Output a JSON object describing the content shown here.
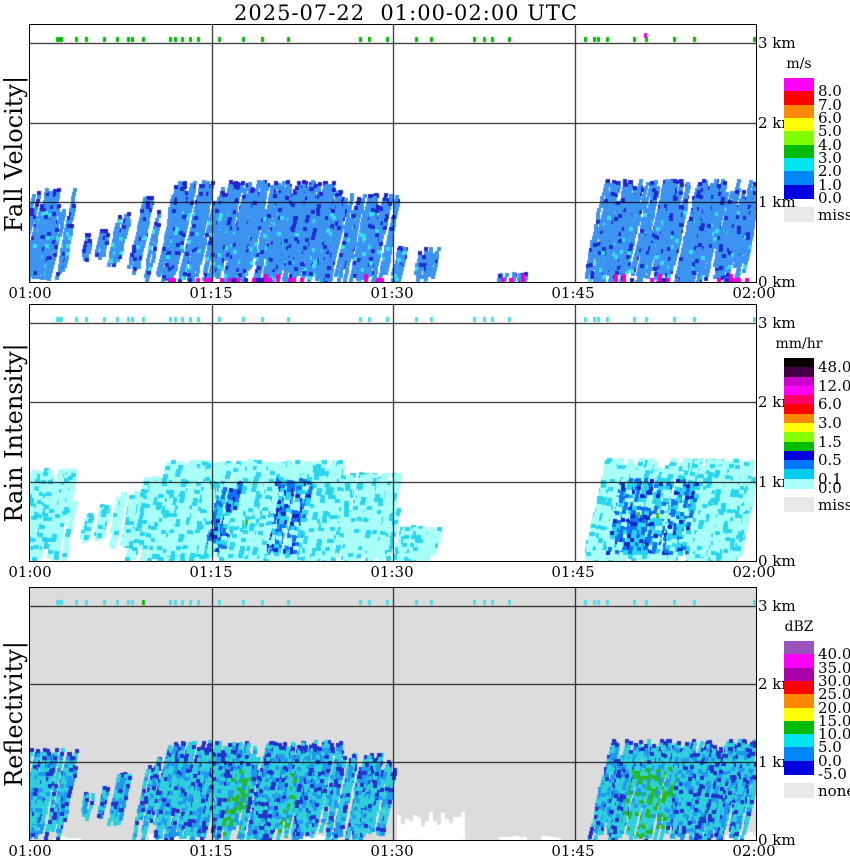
{
  "title": "2025-07-22  01:00-02:00 UTC",
  "chart_data": {
    "type": "heatmap",
    "title": "2025-07-22  01:00-02:00 UTC",
    "x_axis": {
      "start": "01:00",
      "end": "02:00",
      "tick_labels": [
        "01:00",
        "01:15",
        "01:30",
        "01:45",
        "02:00"
      ],
      "tick_minutes": [
        0,
        15,
        30,
        45,
        60
      ]
    },
    "y_axis": {
      "tick_labels": [
        "3 km",
        "2 km",
        "1 km",
        "0 km"
      ],
      "tick_km": [
        3,
        2,
        1,
        0
      ],
      "range_km": [
        0,
        3.2
      ]
    },
    "rain_flags_min": [
      2.2,
      3.8,
      4.6,
      6.1,
      7.2,
      8.1,
      8.45,
      9.35,
      11.6,
      11.95,
      12.55,
      13.2,
      13.9,
      15.6,
      17.6,
      19.2,
      21.3,
      27.3,
      28.0,
      29.5,
      31.9,
      33.1,
      36.7,
      37.5,
      38.2,
      39.6,
      45.9,
      46.6,
      46.95,
      47.7,
      49.9,
      50.9,
      53.2,
      54.9,
      59.8
    ],
    "echo_clusters": [
      {
        "name": "A",
        "t0": 0.0,
        "t1": 3.7,
        "top_km": 1.18,
        "bot_km": 0.02,
        "coverage": 0.62,
        "panels": [
          1,
          1,
          1
        ]
      },
      {
        "name": "B1",
        "t0": 4.4,
        "t1": 5.1,
        "top_km": 0.62,
        "bot_km": 0.28,
        "coverage": 0.5,
        "panels": [
          1,
          1,
          1
        ]
      },
      {
        "name": "B2",
        "t0": 5.7,
        "t1": 6.4,
        "top_km": 0.72,
        "bot_km": 0.3,
        "coverage": 0.5,
        "panels": [
          1,
          1,
          1
        ]
      },
      {
        "name": "B3",
        "t0": 7.1,
        "t1": 8.8,
        "top_km": 0.88,
        "bot_km": 0.2,
        "coverage": 0.55,
        "panels": [
          1,
          1,
          1
        ]
      },
      {
        "name": "C0",
        "t0": 9.3,
        "t1": 10.6,
        "top_km": 1.08,
        "bot_km": 0.0,
        "coverage": 0.6,
        "panels": [
          1,
          1,
          1
        ]
      },
      {
        "name": "C",
        "t0": 11.2,
        "t1": 25.7,
        "top_km": 1.28,
        "bot_km": 0.0,
        "coverage": 0.95,
        "panels": [
          1,
          1,
          1
        ]
      },
      {
        "name": "C-tail",
        "t0": 25.7,
        "t1": 30.3,
        "top_km": 1.12,
        "bot_km": 0.0,
        "coverage": 0.65,
        "panels": [
          1,
          1,
          1
        ]
      },
      {
        "name": "C-end",
        "t0": 30.3,
        "t1": 33.8,
        "top_km": 0.45,
        "bot_km": 0.0,
        "coverage": 0.5,
        "panels": [
          1,
          1,
          0
        ]
      },
      {
        "name": "low-bits-1",
        "t0": 38.5,
        "t1": 40.9,
        "top_km": 0.12,
        "bot_km": 0.0,
        "coverage": 0.4,
        "panels": [
          1,
          0,
          0
        ]
      },
      {
        "name": "low-bits-2",
        "t0": 45.8,
        "t1": 47.2,
        "top_km": 0.14,
        "bot_km": 0.0,
        "coverage": 0.4,
        "panels": [
          1,
          0,
          0
        ]
      },
      {
        "name": "D",
        "t0": 47.3,
        "t1": 59.9,
        "top_km": 1.3,
        "bot_km": 0.0,
        "coverage": 0.88,
        "panels": [
          1,
          1,
          1
        ]
      }
    ],
    "heavy_cores_min": [
      [
        15.4,
        17.7
      ],
      [
        20.4,
        23.3
      ],
      [
        48.8,
        55.3
      ]
    ],
    "green_cores_min": [
      [
        17.1,
        18.5
      ],
      [
        21.7,
        22.7
      ],
      [
        49.9,
        53.9
      ]
    ],
    "panels": [
      {
        "id": "fall-velocity",
        "ylabel": "Fall Velocity|",
        "units": "m/s",
        "bg": "#FFFFFF",
        "flag_color": "#00BB00",
        "extra_flags": [
          {
            "t": 50.85,
            "color": "#EE00DD",
            "y": 8
          }
        ],
        "echo_style": {
          "base": "#3D93F0",
          "cap": "#2222CC",
          "speck_dark": "#1A2FD0",
          "speck_cyan": "#38E0E8"
        },
        "surface_magenta": {
          "color": "#EE00D0",
          "ranges_min": [
            [
              11.4,
              22.4
            ],
            [
              27.6,
              29.0
            ],
            [
              38.6,
              40.7
            ],
            [
              48.3,
              50.0
            ],
            [
              51.2,
              52.6
            ],
            [
              56.8,
              59.6
            ]
          ]
        },
        "colorbar": {
          "title": "m/s",
          "bands": [
            {
              "color": "#FF00FF",
              "label": "8.0"
            },
            {
              "color": "#FF0000",
              "label": "7.0"
            },
            {
              "color": "#FF8800",
              "label": "6.0"
            },
            {
              "color": "#FFFF00",
              "label": "5.0"
            },
            {
              "color": "#7FFF00",
              "label": "4.0"
            },
            {
              "color": "#00BB00",
              "label": "3.0"
            },
            {
              "color": "#00E4F0",
              "label": "2.0"
            },
            {
              "color": "#0086FF",
              "label": "1.0"
            },
            {
              "color": "#0000E0",
              "label": "0.0"
            }
          ],
          "missing": {
            "color": "#E8E8E8",
            "label": "miss"
          }
        }
      },
      {
        "id": "rain-intensity",
        "ylabel": "Rain Intensity|",
        "units": "mm/hr",
        "bg": "#FFFFFF",
        "flag_color": "#4CDDE8",
        "green_dots": [
          [
            17.9,
            0.52
          ],
          [
            50.3,
            0.62
          ],
          [
            51.9,
            0.6
          ]
        ],
        "echo_style": {
          "outer": "#A8FFF8",
          "mid": "#2BD4EE",
          "strong": "#1173F0",
          "core": "#1028C8"
        },
        "colorbar": {
          "title": "mm/hr",
          "bands": [
            {
              "color": "#000000",
              "label": "48.0"
            },
            {
              "color": "#440044"
            },
            {
              "color": "#CC00CC",
              "label": "12.0"
            },
            {
              "color": "#FF00FF"
            },
            {
              "color": "#FF0066",
              "label": "6.0"
            },
            {
              "color": "#FF0000"
            },
            {
              "color": "#FF8800",
              "label": "3.0"
            },
            {
              "color": "#FFFF00"
            },
            {
              "color": "#88FF00",
              "label": "1.5"
            },
            {
              "color": "#00BB00"
            },
            {
              "color": "#0000E0",
              "label": "0.5"
            },
            {
              "color": "#0077FF"
            },
            {
              "color": "#00CCEE",
              "label": "0.1"
            },
            {
              "color": "#AAFFFF",
              "label": "0.0"
            }
          ],
          "missing": {
            "color": "#E8E8E8",
            "label": "miss"
          }
        }
      },
      {
        "id": "reflectivity",
        "ylabel": "Reflectivity|",
        "units": "dBZ",
        "bg": "#DCDCDC",
        "flag_color": "#4CDDE8",
        "flag_overrides": [
          {
            "t": 9.35,
            "color": "#00BB00"
          }
        ],
        "white_patches": [
          [
            1.9,
            4.1,
            0.05
          ],
          [
            9.8,
            13.2,
            0.08
          ],
          [
            21.7,
            24.8,
            0.06
          ],
          [
            30.3,
            35.6,
            0.38
          ],
          [
            38.8,
            40.8,
            0.07
          ],
          [
            42.2,
            43.8,
            0.06
          ],
          [
            57.4,
            60.0,
            0.12
          ]
        ],
        "echo_style": {
          "edge": "#2233CC",
          "mid": "#2198EE",
          "inner": "#30CFDC",
          "core": "#28B828"
        },
        "colorbar": {
          "title": "dBZ",
          "bands": [
            {
              "color": "#9955BB",
              "label": "40.0"
            },
            {
              "color": "#FF00FF",
              "label": "35.0"
            },
            {
              "color": "#AA00AA",
              "label": "30.0"
            },
            {
              "color": "#FF0000",
              "label": "25.0"
            },
            {
              "color": "#FF8800",
              "label": "20.0"
            },
            {
              "color": "#FFFF00",
              "label": "15.0"
            },
            {
              "color": "#00BB00",
              "label": "10.0"
            },
            {
              "color": "#00E4F0",
              "label": "5.0"
            },
            {
              "color": "#0086FF",
              "label": "0.0"
            },
            {
              "color": "#0000E0",
              "label": "-5.0"
            }
          ],
          "missing": {
            "color": "#E8E8E8",
            "label": "none"
          }
        }
      }
    ]
  }
}
